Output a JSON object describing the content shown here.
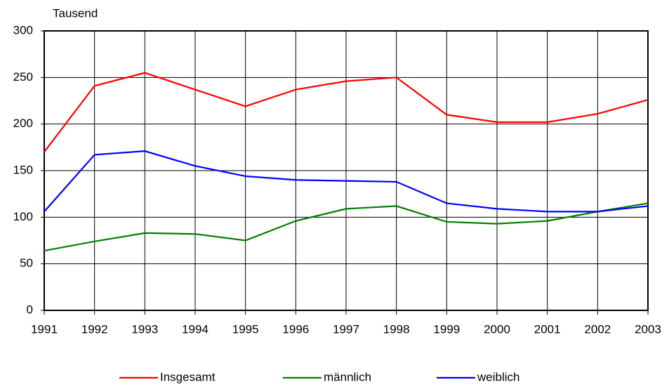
{
  "chart_data": {
    "type": "line",
    "y_label": "Tausend",
    "x": [
      1991,
      1992,
      1993,
      1994,
      1995,
      1996,
      1997,
      1998,
      1999,
      2000,
      2001,
      2002,
      2003
    ],
    "xlim": [
      1991,
      2003
    ],
    "xticks": [
      1991,
      1992,
      1993,
      1994,
      1995,
      1996,
      1997,
      1998,
      1999,
      2000,
      2001,
      2002,
      2003
    ],
    "ylim": [
      0,
      300
    ],
    "yticks": [
      0,
      50,
      100,
      150,
      200,
      250,
      300
    ],
    "grid": true,
    "legend": "bottom",
    "series": [
      {
        "name": "Insgesamt",
        "color": "#ff0000",
        "values": [
          170,
          241,
          255,
          237,
          219,
          237,
          246,
          250,
          210,
          202,
          202,
          211,
          226
        ]
      },
      {
        "name": "männlich",
        "color": "#008000",
        "values": [
          64,
          74,
          83,
          82,
          75,
          96,
          109,
          112,
          95,
          93,
          96,
          106,
          115
        ]
      },
      {
        "name": "weiblich",
        "color": "#0000ff",
        "values": [
          106,
          167,
          171,
          155,
          144,
          140,
          139,
          138,
          115,
          109,
          106,
          106,
          112
        ]
      }
    ]
  }
}
